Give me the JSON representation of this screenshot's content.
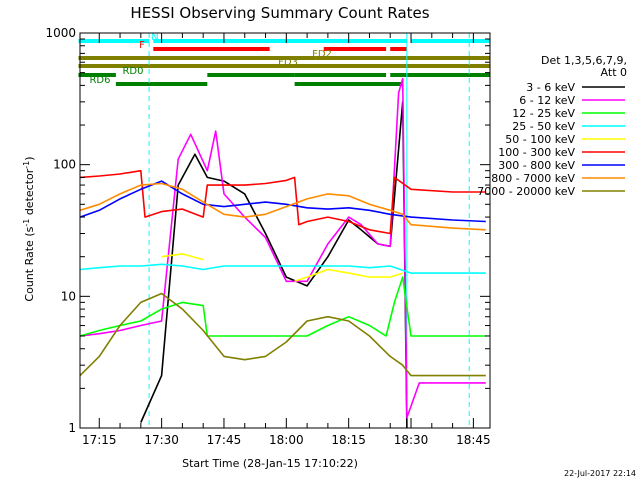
{
  "chart_data": {
    "type": "line",
    "title": "HESSI Observing Summary Count Rates",
    "xlabel": "Start Time (28-Jan-15 17:10:22)",
    "ylabel": "Count Rate (s",
    "ylabel_sup": "-1",
    "ylabel_rest": " detector",
    "ylabel_sup2": "-1",
    "ylabel_close": ")",
    "yscale": "log",
    "ylim": [
      1,
      1000
    ],
    "xlim": [
      "17:10:22",
      "18:49"
    ],
    "x_ticks": [
      "17:15",
      "17:30",
      "17:45",
      "18:00",
      "18:15",
      "18:30",
      "18:45"
    ],
    "y_ticks": [
      "1",
      "10",
      "100",
      "1000"
    ],
    "timestamp": "22-Jul-2017 22:14",
    "legend_header": [
      "Det 1,3,5,6,7,9,",
      "Att 0"
    ],
    "legend_position": "right",
    "vertical_markers": [
      {
        "time": "17:27",
        "color": "#00ffff",
        "style": "dashed"
      },
      {
        "time": "18:29",
        "color": "#00ffff",
        "style": "solid"
      },
      {
        "time": "18:44",
        "color": "#00ffff",
        "style": "dashed"
      }
    ],
    "flag_bars": [
      {
        "label": "N",
        "color": "#00ffff",
        "row": 0,
        "segments": [
          [
            "17:10",
            "17:27"
          ],
          [
            "17:28",
            "18:29"
          ],
          [
            "18:30",
            "18:49"
          ]
        ]
      },
      {
        "label": "F",
        "color": "#ff0000",
        "row": 1,
        "segments": [
          [
            "17:28",
            "17:56"
          ],
          [
            "18:09",
            "18:24"
          ],
          [
            "18:25",
            "18:29"
          ]
        ]
      },
      {
        "label": "FD2",
        "color": "#808000",
        "row": 2,
        "segments": [
          [
            "17:10",
            "18:07"
          ],
          [
            "18:07",
            "18:49"
          ]
        ]
      },
      {
        "label": "FD3",
        "color": "#808000",
        "row": 3,
        "segments": [
          [
            "17:10",
            "18:49"
          ]
        ]
      },
      {
        "label": "RD0",
        "color": "#008000",
        "row": 4,
        "segments": [
          [
            "17:10",
            "17:19"
          ],
          [
            "17:41",
            "18:02"
          ],
          [
            "18:02",
            "18:24"
          ],
          [
            "18:25",
            "18:49"
          ]
        ]
      },
      {
        "label": "RD6",
        "color": "#008000",
        "row": 5,
        "segments": [
          [
            "17:19",
            "17:41"
          ],
          [
            "18:02",
            "18:28"
          ]
        ]
      }
    ],
    "series": [
      {
        "name": "3 - 6 keV",
        "color": "#000000",
        "x": [
          "17:10",
          "17:15",
          "17:20",
          "17:25",
          "17:30",
          "17:34",
          "17:38",
          "17:41",
          "17:45",
          "17:50",
          "17:55",
          "18:00",
          "18:05",
          "18:10",
          "18:15",
          "18:18",
          "18:22",
          "18:25",
          "18:28",
          "18:29",
          "18:32",
          "18:40",
          "18:48"
        ],
        "values": [
          null,
          null,
          null,
          1.1,
          2.5,
          70,
          120,
          80,
          75,
          60,
          30,
          14,
          12,
          20,
          38,
          32,
          25,
          24,
          300,
          1,
          null,
          null,
          null
        ]
      },
      {
        "name": "6 - 12 keV",
        "color": "#ff00ff",
        "x": [
          "17:10",
          "17:15",
          "17:20",
          "17:25",
          "17:30",
          "17:34",
          "17:37",
          "17:41",
          "17:43",
          "17:45",
          "17:50",
          "17:55",
          "18:00",
          "18:05",
          "18:10",
          "18:15",
          "18:18",
          "18:22",
          "18:25",
          "18:27",
          "18:28",
          "18:29",
          "18:32",
          "18:40",
          "18:48"
        ],
        "values": [
          5,
          5.2,
          5.5,
          6,
          6.5,
          110,
          170,
          90,
          180,
          60,
          40,
          28,
          13,
          13,
          25,
          40,
          35,
          25,
          24,
          350,
          450,
          1.2,
          2.2,
          2.2,
          2.2
        ]
      },
      {
        "name": "12 - 25 keV",
        "color": "#00ff00",
        "x": [
          "17:10",
          "17:15",
          "17:20",
          "17:25",
          "17:30",
          "17:35",
          "17:40",
          "17:41",
          "17:45",
          "17:50",
          "17:55",
          "18:00",
          "18:02",
          "18:05",
          "18:10",
          "18:15",
          "18:20",
          "18:24",
          "18:26",
          "18:28",
          "18:30",
          "18:40",
          "18:48"
        ],
        "values": [
          5,
          5.5,
          6,
          6.5,
          8,
          9,
          8.5,
          5,
          5,
          5,
          5,
          5,
          5,
          5,
          6,
          7,
          6,
          5,
          9,
          14,
          5,
          5,
          5
        ]
      },
      {
        "name": "25 - 50 keV",
        "color": "#00ffff",
        "x": [
          "17:10",
          "17:15",
          "17:20",
          "17:25",
          "17:30",
          "17:35",
          "17:40",
          "17:45",
          "17:50",
          "17:55",
          "18:00",
          "18:05",
          "18:10",
          "18:15",
          "18:20",
          "18:25",
          "18:30",
          "18:40",
          "18:48"
        ],
        "values": [
          16,
          16.5,
          17,
          17,
          17.5,
          17,
          16,
          17,
          17,
          17,
          17,
          17,
          17,
          17,
          16.5,
          17,
          15,
          15,
          15
        ]
      },
      {
        "name": "50 - 100 keV",
        "color": "#ffff00",
        "x": [
          "17:10",
          "17:15",
          "17:20",
          "17:25",
          "17:30",
          "17:35",
          "17:40",
          "17:41",
          "17:45",
          "17:50",
          "17:55",
          "18:00",
          "18:02",
          "18:05",
          "18:10",
          "18:15",
          "18:20",
          "18:25",
          "18:28",
          "18:30",
          "18:40",
          "18:48"
        ],
        "values": [
          null,
          null,
          null,
          null,
          20,
          21,
          19,
          null,
          null,
          null,
          null,
          null,
          13,
          14,
          16,
          15,
          14,
          14,
          15,
          null,
          null,
          null
        ]
      },
      {
        "name": "100 - 300 keV",
        "color": "#ff0000",
        "x": [
          "17:10",
          "17:15",
          "17:20",
          "17:25",
          "17:26",
          "17:30",
          "17:35",
          "17:40",
          "17:41",
          "17:45",
          "17:50",
          "17:55",
          "18:00",
          "18:02",
          "18:03",
          "18:05",
          "18:10",
          "18:15",
          "18:20",
          "18:25",
          "18:26",
          "18:30",
          "18:40",
          "18:48"
        ],
        "values": [
          80,
          82,
          85,
          90,
          40,
          44,
          46,
          40,
          70,
          70,
          70,
          72,
          76,
          80,
          35,
          37,
          40,
          37,
          32,
          30,
          80,
          65,
          62,
          62
        ]
      },
      {
        "name": "300 - 800 keV",
        "color": "#0000ff",
        "x": [
          "17:10",
          "17:15",
          "17:20",
          "17:25",
          "17:30",
          "17:35",
          "17:40",
          "17:45",
          "17:50",
          "17:55",
          "18:00",
          "18:05",
          "18:10",
          "18:15",
          "18:20",
          "18:25",
          "18:30",
          "18:40",
          "18:48"
        ],
        "values": [
          40,
          45,
          55,
          65,
          75,
          60,
          50,
          48,
          50,
          52,
          50,
          47,
          46,
          47,
          45,
          42,
          40,
          38,
          37
        ]
      },
      {
        "name": "800 - 7000 keV",
        "color": "#ff8c00",
        "x": [
          "17:10",
          "17:15",
          "17:20",
          "17:25",
          "17:30",
          "17:35",
          "17:40",
          "17:45",
          "17:50",
          "17:55",
          "18:00",
          "18:05",
          "18:10",
          "18:15",
          "18:20",
          "18:25",
          "18:28",
          "18:30",
          "18:40",
          "18:48"
        ],
        "values": [
          45,
          50,
          60,
          70,
          72,
          65,
          52,
          42,
          40,
          42,
          48,
          55,
          60,
          58,
          50,
          45,
          42,
          35,
          33,
          32
        ]
      },
      {
        "name": "7000 - 20000 keV",
        "color": "#808000",
        "x": [
          "17:10",
          "17:15",
          "17:20",
          "17:25",
          "17:30",
          "17:35",
          "17:40",
          "17:45",
          "17:50",
          "17:55",
          "18:00",
          "18:05",
          "18:10",
          "18:15",
          "18:20",
          "18:25",
          "18:28",
          "18:30",
          "18:40",
          "18:48"
        ],
        "values": [
          2.5,
          3.5,
          6,
          9,
          10.5,
          8,
          5.5,
          3.5,
          3.3,
          3.5,
          4.5,
          6.5,
          7,
          6.5,
          5,
          3.5,
          3,
          2.5,
          2.5,
          2.5
        ]
      }
    ]
  }
}
